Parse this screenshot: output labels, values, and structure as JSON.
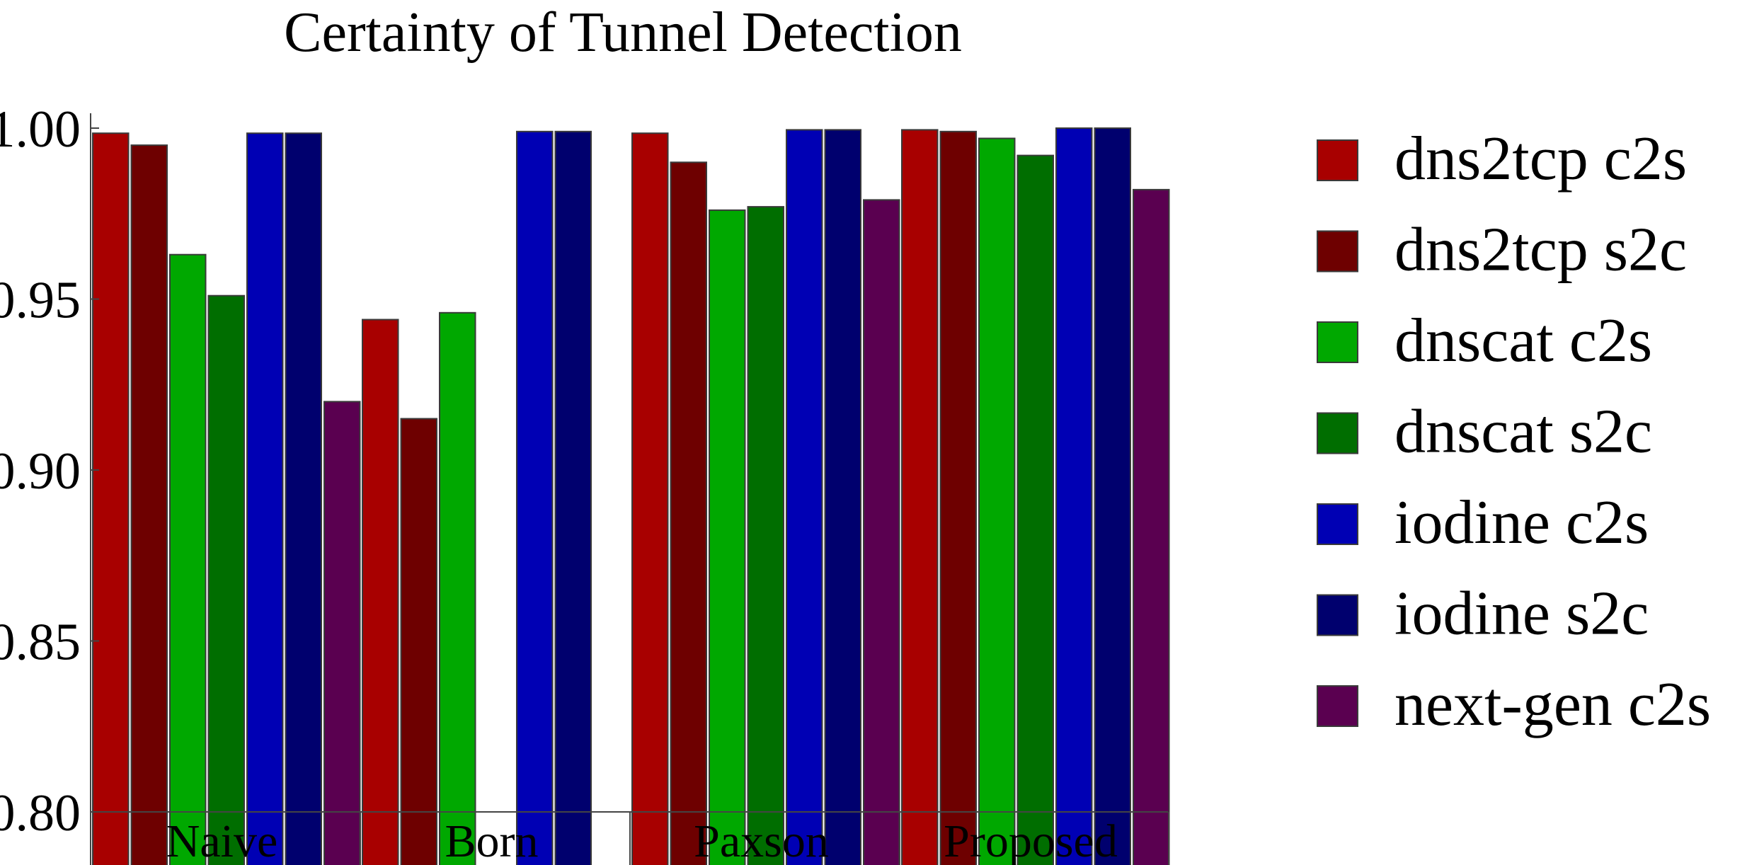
{
  "chart_data": {
    "type": "bar",
    "title": "Certainty of Tunnel Detection",
    "xlabel": "",
    "ylabel": "",
    "categories": [
      "Naive",
      "Born",
      "Paxson",
      "Proposed"
    ],
    "ylim": [
      0.8,
      1.0
    ],
    "yticks": [
      0.8,
      0.85,
      0.9,
      0.95,
      1.0
    ],
    "ytick_labels": [
      "0.80",
      "0.85",
      "0.90",
      "0.95",
      "1.00"
    ],
    "legend_position": "right",
    "series": [
      {
        "name": "dns2tcp c2s",
        "color": "#a80000",
        "values": [
          0.9985,
          0.944,
          0.9985,
          0.9995
        ]
      },
      {
        "name": "dns2tcp s2c",
        "color": "#6e0000",
        "values": [
          0.995,
          0.915,
          0.99,
          0.999
        ]
      },
      {
        "name": "dnscat c2s",
        "color": "#00a800",
        "values": [
          0.963,
          0.946,
          0.976,
          0.997
        ]
      },
      {
        "name": "dnscat s2c",
        "color": "#006e00",
        "values": [
          0.951,
          null,
          0.977,
          0.992
        ]
      },
      {
        "name": "iodine c2s",
        "color": "#0000b4",
        "values": [
          0.9985,
          0.999,
          0.9995,
          1.0
        ]
      },
      {
        "name": "iodine s2c",
        "color": "#00006e",
        "values": [
          0.9985,
          0.999,
          0.9995,
          1.0
        ]
      },
      {
        "name": "next-gen c2s",
        "color": "#5a0050",
        "values": [
          0.92,
          null,
          0.979,
          0.982
        ]
      }
    ]
  }
}
